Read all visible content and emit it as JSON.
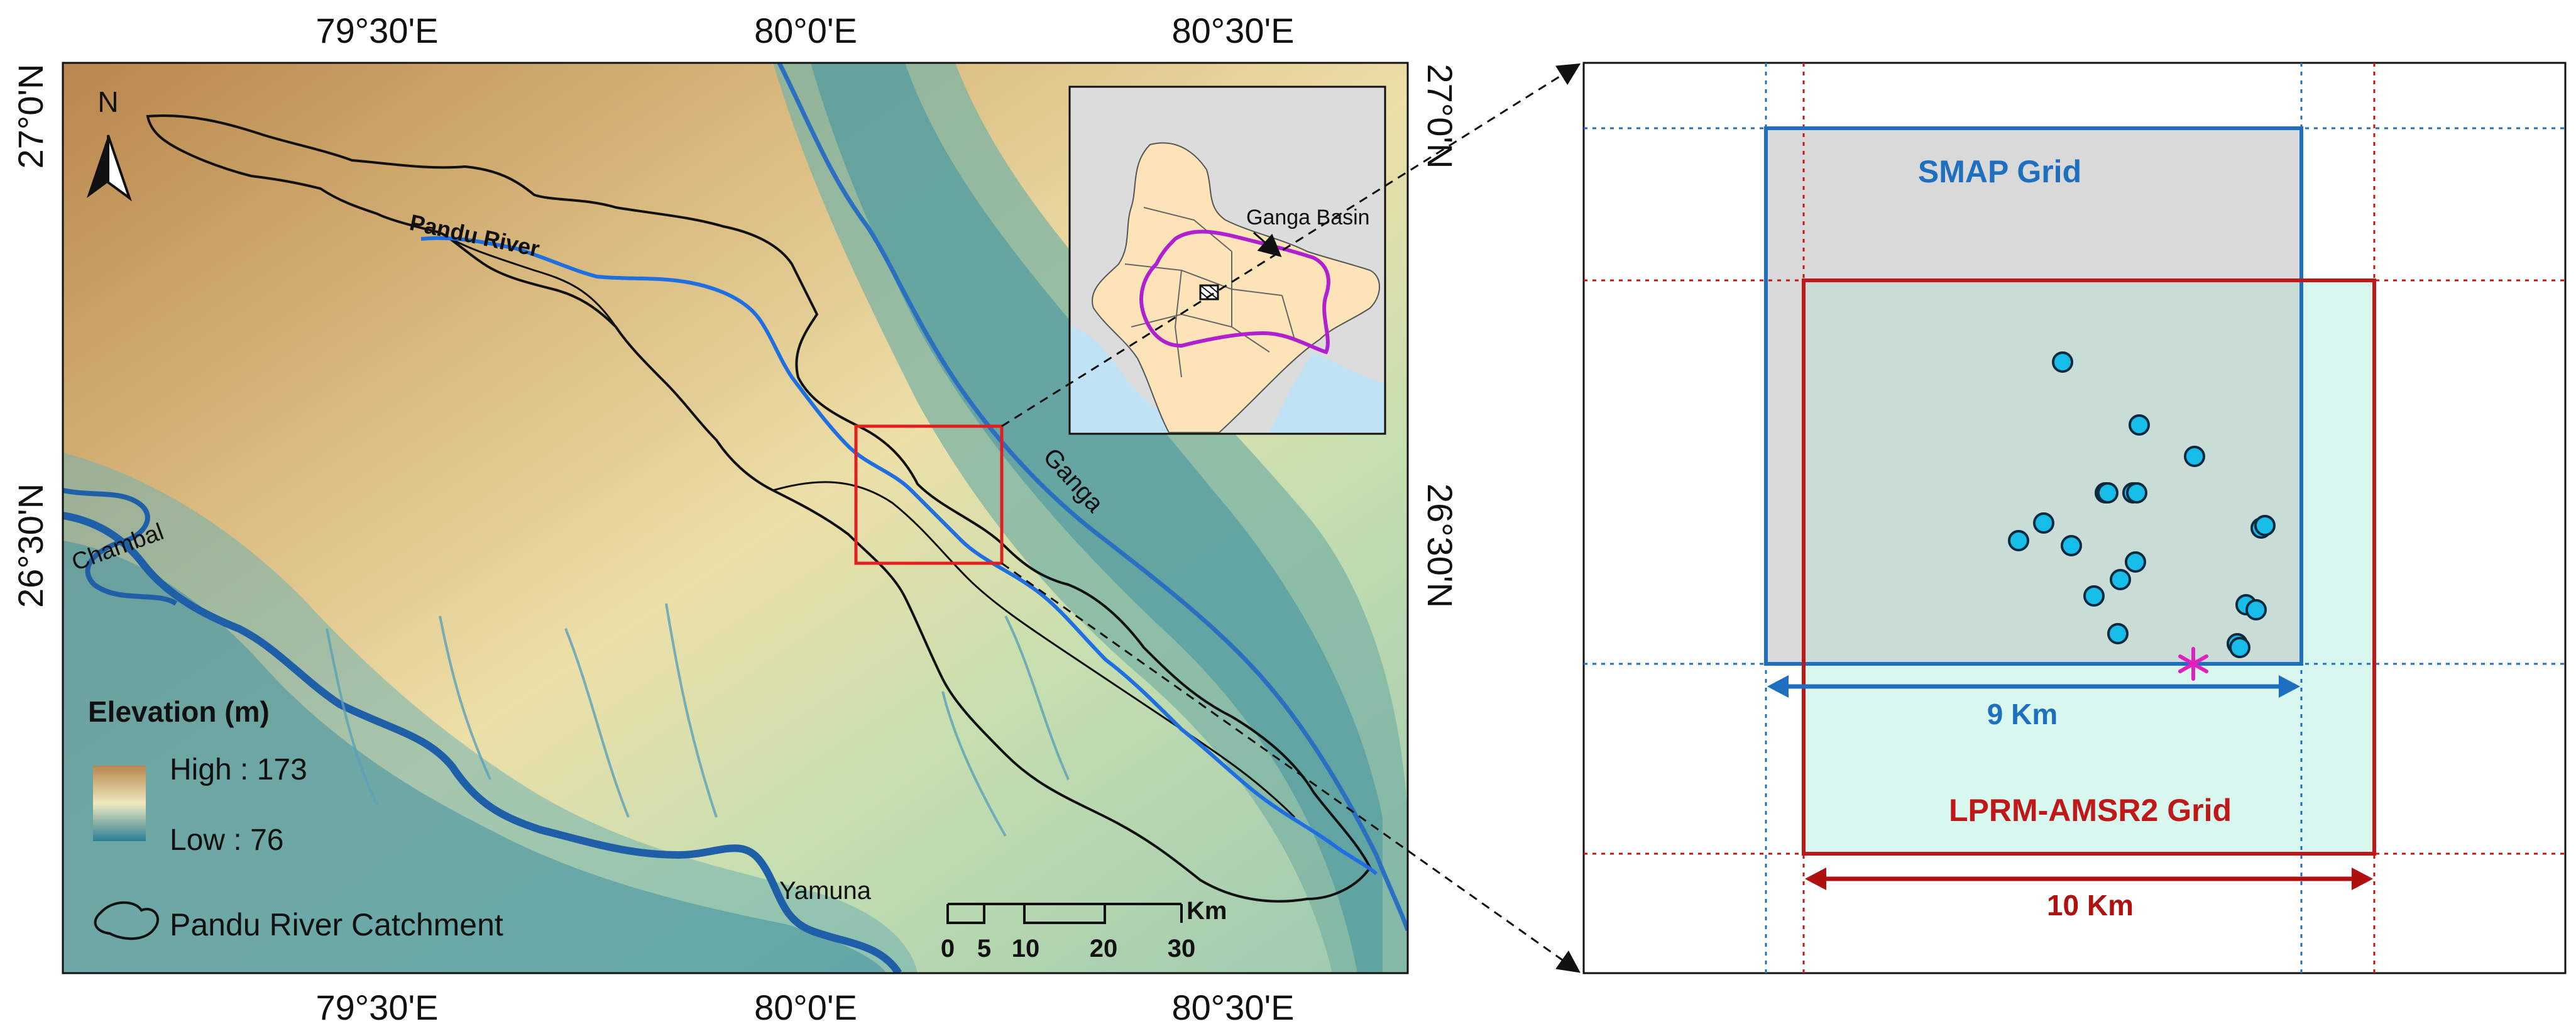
{
  "map": {
    "top_ticks": [
      "79°30'E",
      "80°0'E",
      "80°30'E"
    ],
    "bottom_ticks": [
      "79°30'E",
      "80°0'E",
      "80°30'E"
    ],
    "left_ticks": [
      "27°0'N",
      "26°30'N"
    ],
    "right_ticks": [
      "27°0'N",
      "26°30'N"
    ],
    "north_label": "N",
    "rivers": {
      "pandu": "Pandu River",
      "ganga": "Ganga",
      "chambal": "Chambal",
      "yamuna": "Yamuna"
    },
    "inset_label": "Ganga Basin",
    "legend": {
      "title": "Elevation (m)",
      "high": "High : 173",
      "low": "Low : 76",
      "catchment": "Pandu River Catchment"
    },
    "scalebar": {
      "ticks": [
        "0",
        "5",
        "10",
        "20",
        "30"
      ],
      "unit": "Km"
    },
    "colors": {
      "elev_high": "#b8864c",
      "elev_mid": "#e8dfa6",
      "elev_low": "#2a7f95",
      "river": "#1f6fe0",
      "catchment": "#111111",
      "zoom_box": "#e02020",
      "basin": "#b020d0",
      "india_fill": "#fde4b8",
      "sea": "#bfe3f5"
    }
  },
  "grid_diagram": {
    "smap_label": "SMAP Grid",
    "lprm_label": "LPRM-AMSR2 Grid",
    "smap_dim": "9 Km",
    "lprm_dim": "10 Km",
    "station_count": 18,
    "colors": {
      "smap": "#1f6fc0",
      "lprm": "#c01818",
      "smap_fill": "#d9d9d9",
      "lprm_fill": "#d8f7ee",
      "overlap_fill": "#c9dcd6",
      "station": "#16bde8",
      "star": "#e020c0"
    }
  }
}
